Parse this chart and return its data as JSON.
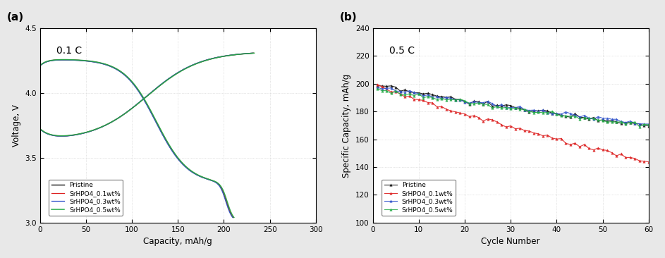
{
  "panel_a": {
    "label": "(a)",
    "annotation": "0.1 C",
    "xlabel": "Capacity, mAh/g",
    "ylabel": "Voltage, V",
    "xlim": [
      0,
      300
    ],
    "ylim": [
      3.0,
      4.5
    ],
    "xticks": [
      0,
      50,
      100,
      150,
      200,
      250,
      300
    ],
    "yticks": [
      3.0,
      3.5,
      4.0,
      4.5
    ],
    "series": [
      {
        "label": "Pristine",
        "color": "#111111",
        "lw": 1.0
      },
      {
        "label": "SrHPO4_0.1wt%",
        "color": "#dd2222",
        "lw": 0.9
      },
      {
        "label": "SrHPO4_0.3wt%",
        "color": "#3355cc",
        "lw": 0.9
      },
      {
        "label": "SrHPO4_0.5wt%",
        "color": "#22aa44",
        "lw": 1.1
      }
    ],
    "discharge_cap": 210,
    "charge_cap": 232,
    "v_discharge_start": 4.26,
    "v_discharge_end": 3.0,
    "v_charge_start": 3.63,
    "v_charge_end": 4.32
  },
  "panel_b": {
    "label": "(b)",
    "annotation": "0.5 C",
    "xlabel": "Cycle Number",
    "ylabel": "Specific Capacity, mAh/g",
    "xlim": [
      0,
      60
    ],
    "ylim": [
      100,
      240
    ],
    "xticks": [
      0,
      10,
      20,
      30,
      40,
      50,
      60
    ],
    "yticks": [
      100,
      120,
      140,
      160,
      180,
      200,
      220,
      240
    ],
    "series": [
      {
        "label": "Pristine",
        "color": "#111111",
        "lw": 0.8,
        "marker": "^",
        "ms": 2.5,
        "init": 199,
        "final": 170
      },
      {
        "label": "SrHPO4_0.1wt%",
        "color": "#dd2222",
        "lw": 0.8,
        "marker": "^",
        "ms": 2.5,
        "init": 200,
        "final": 143
      },
      {
        "label": "SrHPO4_0.3wt%",
        "color": "#3355cc",
        "lw": 0.8,
        "marker": "^",
        "ms": 2.5,
        "init": 198,
        "final": 171
      },
      {
        "label": "SrHPO4_0.5wt%",
        "color": "#22aa44",
        "lw": 0.8,
        "marker": "^",
        "ms": 2.5,
        "init": 197,
        "final": 170
      }
    ]
  },
  "fig_bg": "#e8e8e8",
  "axes_bg": "#ffffff",
  "grid_color": "#cccccc",
  "grid_ls": "dotted",
  "legend_fontsize": 6.5,
  "tick_fontsize": 7.5,
  "label_fontsize": 8.5,
  "annot_fontsize": 10
}
